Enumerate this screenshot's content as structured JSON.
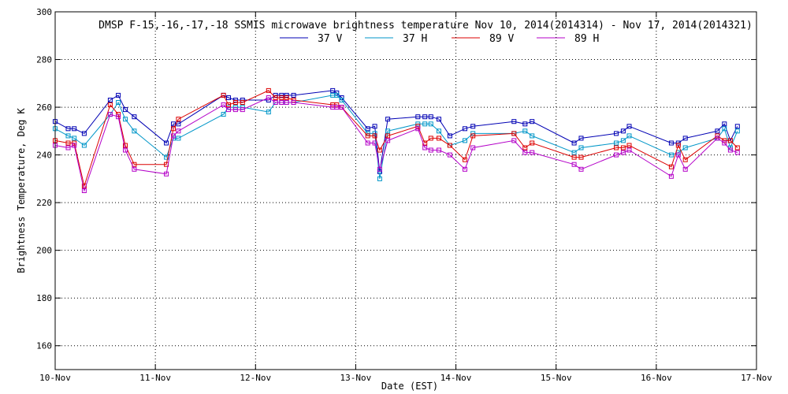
{
  "chart_data": {
    "type": "line",
    "title": "DMSP F-15,-16,-17,-18 SSMIS microwave brightness temperature Nov 10, 2014(2014314) - Nov 17, 2014(2014321)",
    "xlabel": "Date (EST)",
    "ylabel": "Brightness Temperature, Deg K",
    "xlim": [
      0,
      7
    ],
    "ylim": [
      150,
      300
    ],
    "x_ticks": [
      0,
      1,
      2,
      3,
      4,
      5,
      6,
      7
    ],
    "x_tick_labels": [
      "10-Nov",
      "11-Nov",
      "12-Nov",
      "13-Nov",
      "14-Nov",
      "15-Nov",
      "16-Nov",
      "17-Nov"
    ],
    "y_ticks": [
      160,
      180,
      200,
      220,
      240,
      260,
      280,
      300
    ],
    "y_tick_labels": [
      "160",
      "180",
      "200",
      "220",
      "240",
      "260",
      "280",
      "300"
    ],
    "grid": true,
    "legend_placement": "top-center",
    "series": [
      {
        "name": "37 V",
        "color": "#0000b4",
        "x": [
          0.0,
          0.13,
          0.19,
          0.29,
          0.55,
          0.63,
          0.7,
          0.79,
          1.11,
          1.18,
          1.23,
          1.68,
          1.73,
          1.8,
          1.87,
          2.13,
          2.2,
          2.26,
          2.31,
          2.38,
          2.77,
          2.81,
          2.86,
          3.12,
          3.19,
          3.24,
          3.32,
          3.62,
          3.69,
          3.75,
          3.83,
          3.94,
          4.09,
          4.17,
          4.58,
          4.69,
          4.76,
          5.18,
          5.25,
          5.6,
          5.67,
          5.73,
          6.15,
          6.22,
          6.29,
          6.61,
          6.68,
          6.74,
          6.81
        ],
        "y": [
          254,
          251,
          251,
          249,
          263,
          265,
          259,
          256,
          245,
          253,
          253,
          265,
          264,
          263,
          263,
          263,
          265,
          265,
          265,
          265,
          267,
          266,
          264,
          251,
          252,
          233,
          255,
          256,
          256,
          256,
          255,
          248,
          251,
          252,
          254,
          253,
          254,
          245,
          247,
          249,
          250,
          252,
          245,
          245,
          247,
          250,
          253,
          246,
          252
        ]
      },
      {
        "name": "37 H",
        "color": "#0096c8",
        "x": [
          0.0,
          0.13,
          0.19,
          0.29,
          0.55,
          0.63,
          0.7,
          0.79,
          1.11,
          1.18,
          1.23,
          1.68,
          1.73,
          1.8,
          1.87,
          2.13,
          2.2,
          2.26,
          2.31,
          2.38,
          2.77,
          2.81,
          2.86,
          3.12,
          3.19,
          3.24,
          3.32,
          3.62,
          3.69,
          3.75,
          3.83,
          3.94,
          4.09,
          4.17,
          4.58,
          4.69,
          4.76,
          5.18,
          5.25,
          5.6,
          5.67,
          5.73,
          6.15,
          6.22,
          6.29,
          6.61,
          6.68,
          6.74,
          6.81
        ],
        "y": [
          251,
          248,
          247,
          244,
          257,
          262,
          255,
          250,
          239,
          247,
          247,
          257,
          260,
          260,
          260,
          258,
          262,
          262,
          262,
          262,
          265,
          265,
          263,
          249,
          249,
          230,
          250,
          253,
          253,
          253,
          250,
          244,
          246,
          249,
          249,
          250,
          248,
          241,
          243,
          245,
          246,
          248,
          240,
          241,
          243,
          247,
          251,
          243,
          250
        ]
      },
      {
        "name": "89 V",
        "color": "#dc0000",
        "x": [
          0.0,
          0.13,
          0.19,
          0.29,
          0.55,
          0.63,
          0.7,
          0.79,
          1.11,
          1.18,
          1.23,
          1.68,
          1.73,
          1.8,
          1.87,
          2.13,
          2.2,
          2.26,
          2.31,
          2.38,
          2.77,
          2.81,
          2.86,
          3.12,
          3.19,
          3.24,
          3.32,
          3.62,
          3.69,
          3.75,
          3.83,
          3.94,
          4.09,
          4.17,
          4.58,
          4.69,
          4.76,
          5.18,
          5.25,
          5.6,
          5.67,
          5.73,
          6.15,
          6.22,
          6.29,
          6.61,
          6.68,
          6.74,
          6.81
        ],
        "y": [
          246,
          245,
          245,
          227,
          261,
          257,
          244,
          236,
          236,
          251,
          255,
          265,
          261,
          262,
          262,
          267,
          264,
          264,
          264,
          263,
          261,
          261,
          260,
          248,
          248,
          242,
          248,
          252,
          245,
          247,
          247,
          244,
          238,
          248,
          249,
          243,
          245,
          239,
          239,
          243,
          243,
          244,
          235,
          244,
          238,
          248,
          246,
          246,
          243
        ]
      },
      {
        "name": "89 H",
        "color": "#b400c8",
        "x": [
          0.0,
          0.13,
          0.19,
          0.29,
          0.55,
          0.63,
          0.7,
          0.79,
          1.11,
          1.18,
          1.23,
          1.68,
          1.73,
          1.8,
          1.87,
          2.13,
          2.2,
          2.26,
          2.31,
          2.38,
          2.77,
          2.81,
          2.86,
          3.12,
          3.19,
          3.24,
          3.32,
          3.62,
          3.69,
          3.75,
          3.83,
          3.94,
          4.09,
          4.17,
          4.58,
          4.69,
          4.76,
          5.18,
          5.25,
          5.6,
          5.67,
          5.73,
          6.15,
          6.22,
          6.29,
          6.61,
          6.68,
          6.74,
          6.81
        ],
        "y": [
          244,
          243,
          244,
          225,
          257,
          256,
          242,
          234,
          232,
          248,
          250,
          261,
          259,
          259,
          259,
          264,
          262,
          262,
          262,
          262,
          260,
          260,
          260,
          245,
          245,
          234,
          246,
          251,
          243,
          242,
          242,
          240,
          234,
          243,
          246,
          241,
          241,
          236,
          234,
          240,
          241,
          242,
          231,
          240,
          234,
          247,
          245,
          242,
          241
        ]
      }
    ]
  }
}
